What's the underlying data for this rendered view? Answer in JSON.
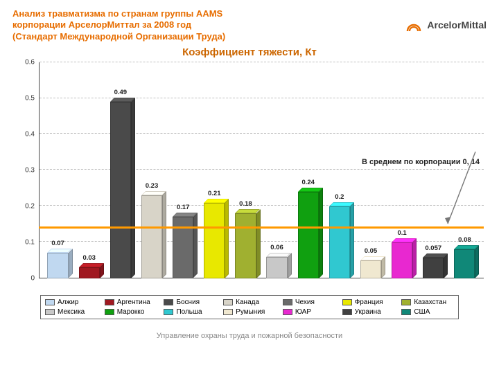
{
  "header": {
    "title_l1": "Анализ травматизма по странам группы AAMS",
    "title_l2": "корпорации АрселорМиттал за 2008 год",
    "title_l3": "(Стандарт Международной Организации Труда)",
    "logo_text": "ArcelorMittal",
    "title_color": "#e76d00"
  },
  "chart": {
    "title": "Коэффициент тяжести, Кт",
    "title_color": "#cc6600",
    "type": "bar",
    "ylim": [
      0,
      0.6
    ],
    "ytick_step": 0.1,
    "yticks": [
      "0",
      "0.1",
      "0.2",
      "0.3",
      "0.4",
      "0.5",
      "0.6"
    ],
    "grid_color": "#bfbfbf",
    "axis_color": "#444444",
    "background_color": "#ffffff",
    "bar_width": 0.7,
    "avg_line_value": 0.14,
    "avg_line_color": "#ff9900",
    "avg_text": "В среднем по корпорации 0, 14",
    "label_fontsize": 10,
    "title_fontsize": 15,
    "series": [
      {
        "label": "Алжир",
        "value": 0.07,
        "color": "#c0d8f0"
      },
      {
        "label": "Аргентина",
        "value": 0.03,
        "color": "#a01820"
      },
      {
        "label": "Босния",
        "value": 0.49,
        "color": "#4a4a4a"
      },
      {
        "label": "Канада",
        "value": 0.23,
        "color": "#d8d4c8"
      },
      {
        "label": "Чехия",
        "value": 0.17,
        "color": "#6a6a6a"
      },
      {
        "label": "Франция",
        "value": 0.21,
        "color": "#e8e800"
      },
      {
        "label": "Казахстан",
        "value": 0.18,
        "color": "#a0b030"
      },
      {
        "label": "Мексика",
        "value": 0.06,
        "color": "#c8c8c8"
      },
      {
        "label": "Марокко",
        "value": 0.24,
        "color": "#10a010"
      },
      {
        "label": "Польша",
        "value": 0.2,
        "color": "#30c8d0"
      },
      {
        "label": "Румыния",
        "value": 0.05,
        "color": "#f0e8d0"
      },
      {
        "label": "ЮАР",
        "value": 0.1,
        "color": "#e828d0"
      },
      {
        "label": "Украина",
        "value": 0.057,
        "color": "#404040"
      },
      {
        "label": "США",
        "value": 0.08,
        "color": "#108878"
      }
    ]
  },
  "legend": {
    "row1": [
      {
        "label": "Алжир",
        "color": "#c0d8f0"
      },
      {
        "label": "Аргентина",
        "color": "#a01820"
      },
      {
        "label": "Босния",
        "color": "#4a4a4a"
      },
      {
        "label": "Канада",
        "color": "#d8d4c8"
      },
      {
        "label": "Чехия",
        "color": "#6a6a6a"
      },
      {
        "label": "Франция",
        "color": "#e8e800"
      },
      {
        "label": "Казахстан",
        "color": "#a0b030"
      }
    ],
    "row2": [
      {
        "label": "Мексика",
        "color": "#c8c8c8"
      },
      {
        "label": "Марокко",
        "color": "#10a010"
      },
      {
        "label": "Польша",
        "color": "#30c8d0"
      },
      {
        "label": "Румыния",
        "color": "#f0e8d0"
      },
      {
        "label": "ЮАР",
        "color": "#e828d0"
      },
      {
        "label": "Украина",
        "color": "#404040"
      },
      {
        "label": "США",
        "color": "#108878"
      }
    ]
  },
  "footer": {
    "text": "Управление охраны труда и пожарной безопасности"
  }
}
